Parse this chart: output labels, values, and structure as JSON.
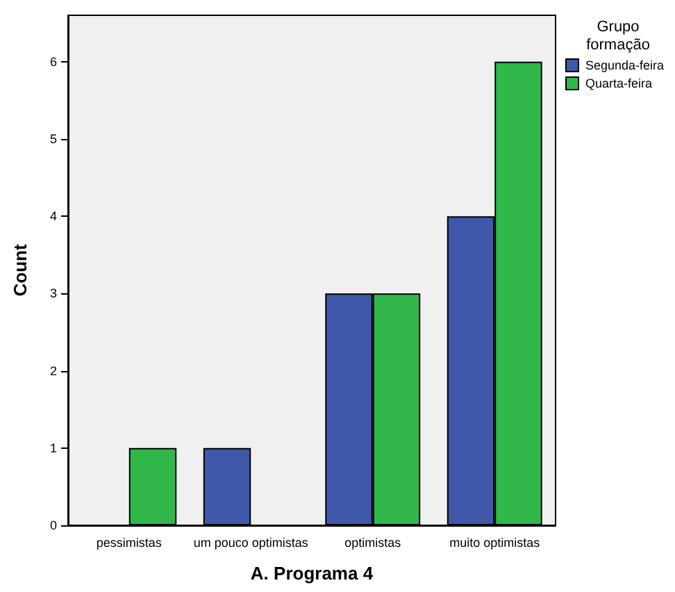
{
  "chart_data": {
    "type": "bar",
    "xlabel": "A. Programa 4",
    "ylabel": "Count",
    "legend_title": "Grupo\nformação",
    "legend": "right",
    "categories": [
      "pessimistas",
      "um pouco optimistas",
      "optimistas",
      "muito optimistas"
    ],
    "series": [
      {
        "name": "Segunda-feira",
        "color": "#3f58a9",
        "values": [
          0,
          1,
          3,
          4
        ]
      },
      {
        "name": "Quarta-feira",
        "color": "#30b84b",
        "values": [
          1,
          0,
          3,
          6
        ]
      }
    ],
    "ylim": [
      0,
      6.6
    ],
    "yticks": [
      0,
      1,
      2,
      3,
      4,
      5,
      6
    ],
    "grid": false
  }
}
